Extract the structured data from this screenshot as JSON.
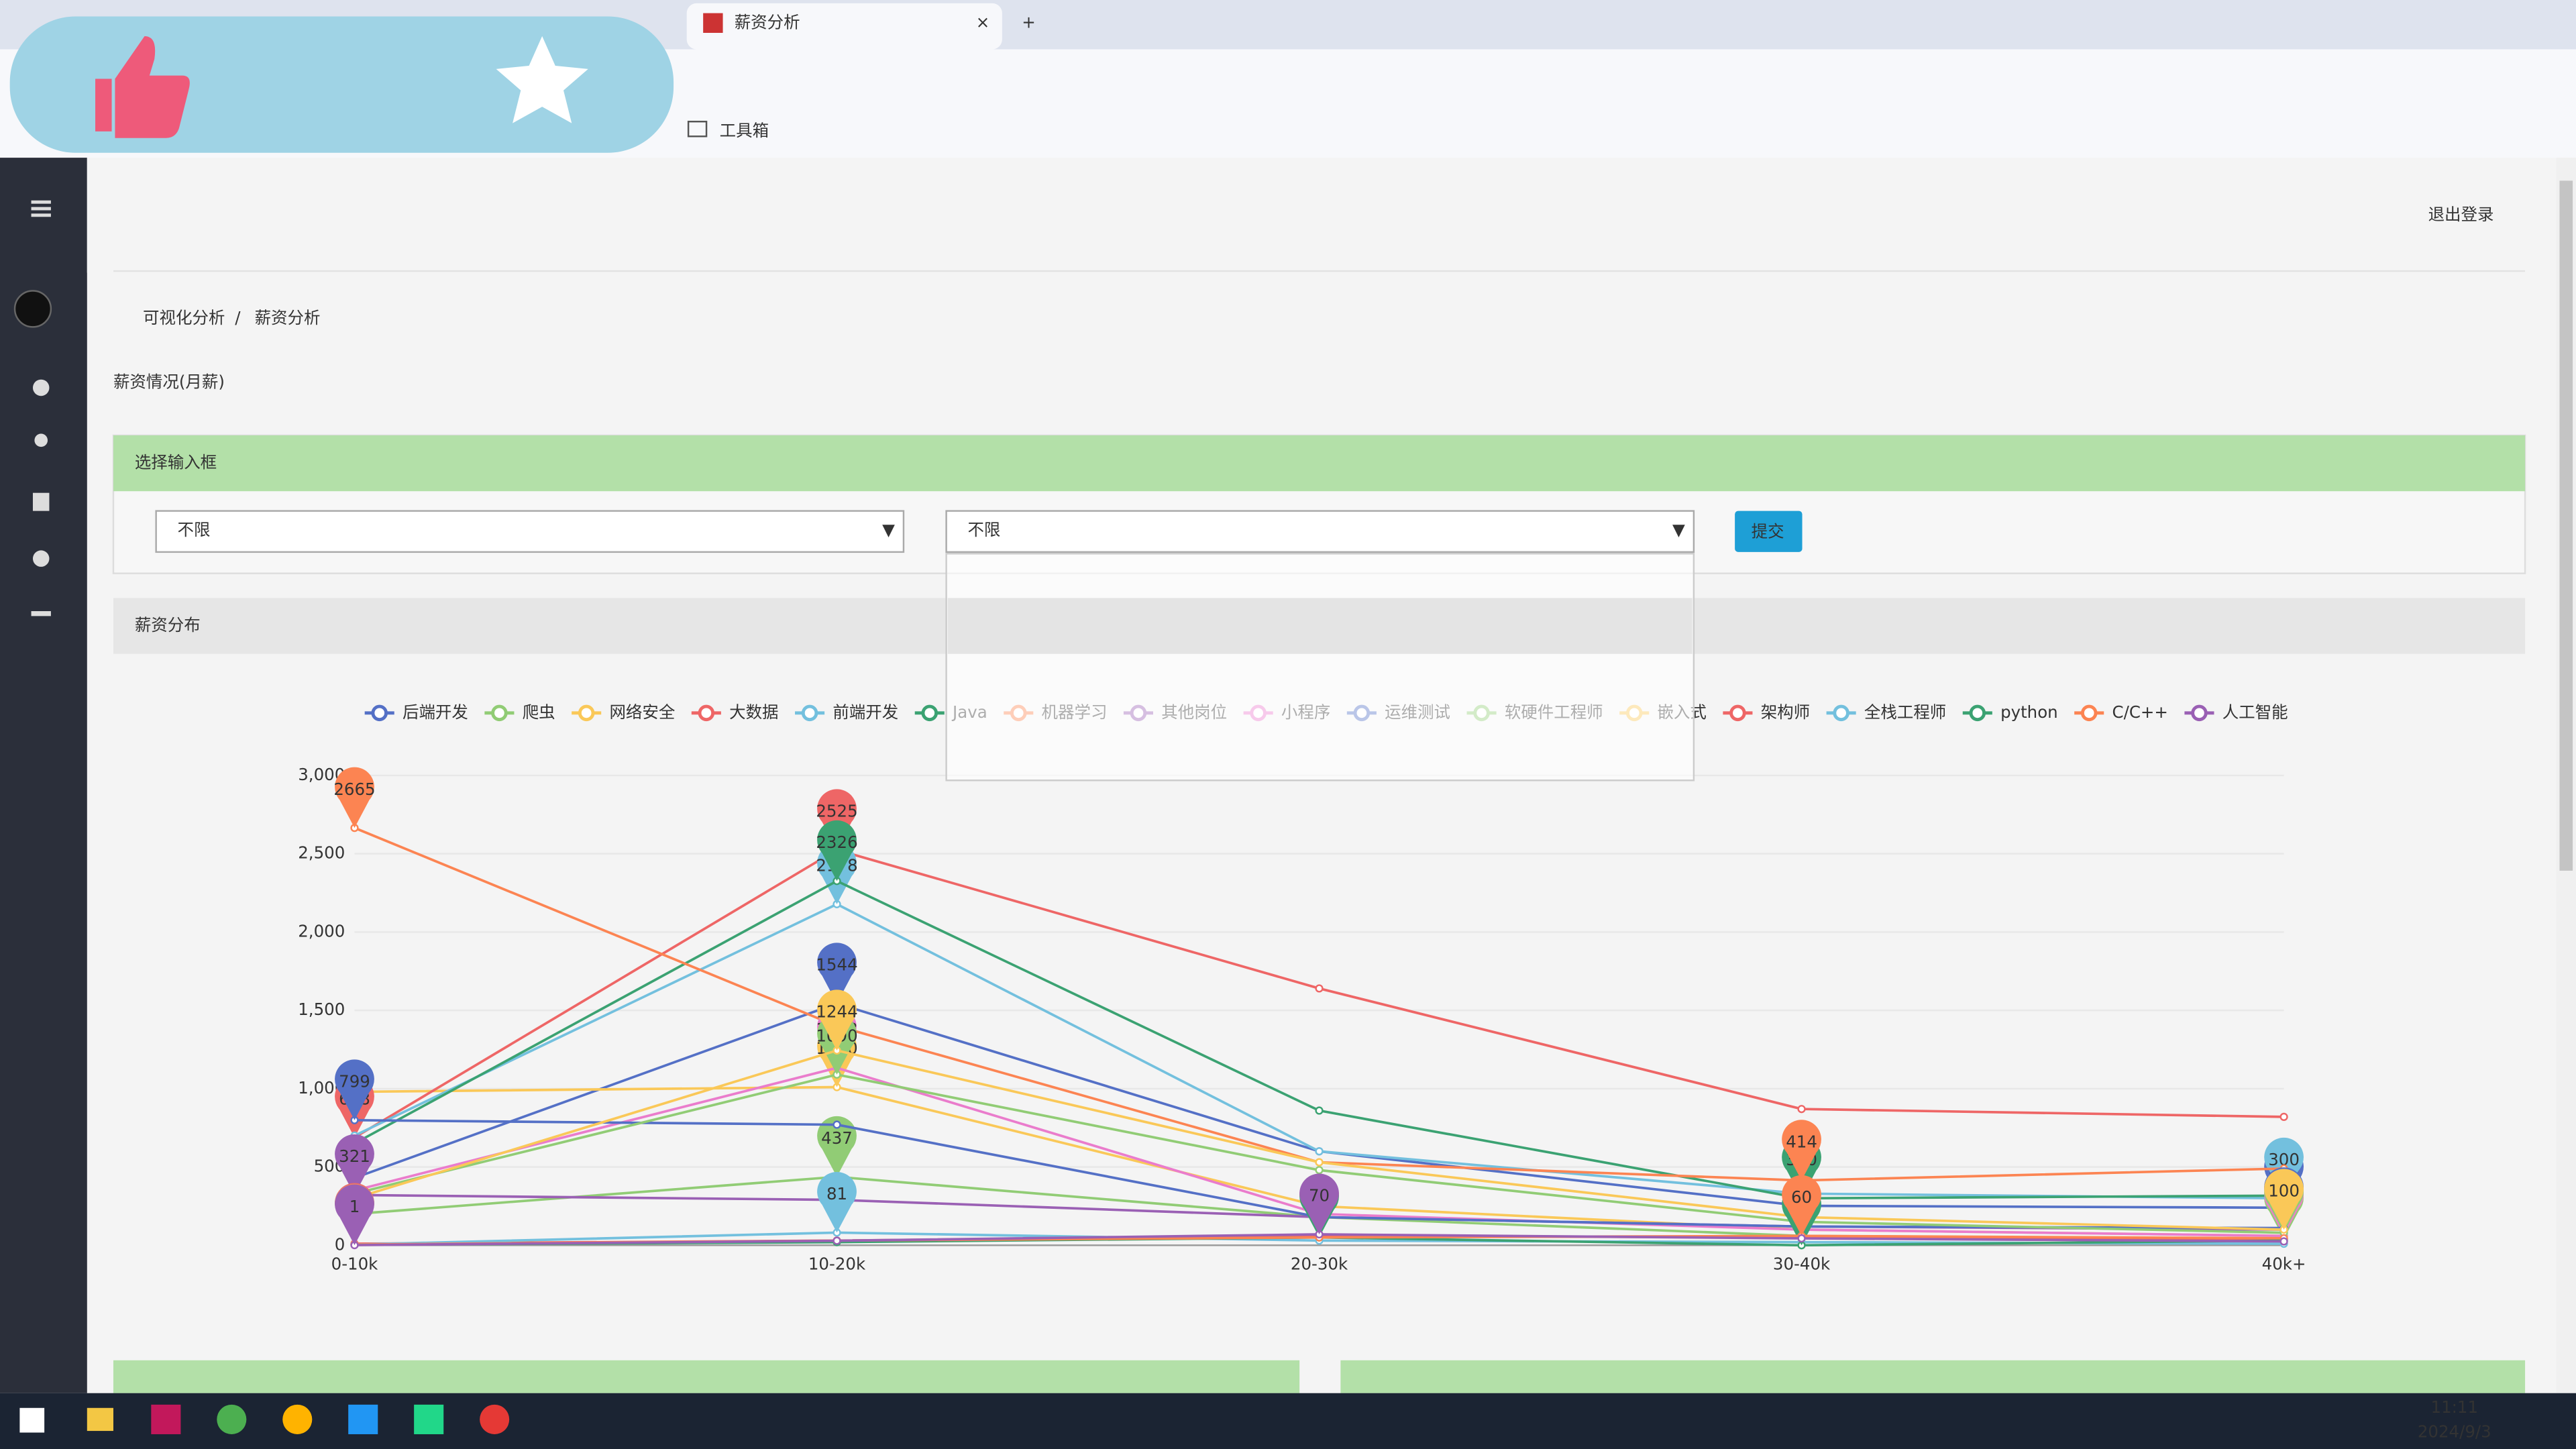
{
  "browser": {
    "tab_title": "薪资分析",
    "bookmark": "工具箱"
  },
  "header": {
    "logout": "退出登录"
  },
  "breadcrumb": [
    "可视化分析",
    "薪资分析"
  ],
  "page_title": "薪资情况(月薪)",
  "filter": {
    "title": "选择输入框",
    "select1": "不限",
    "select2": "不限",
    "submit": "提交"
  },
  "chart_panel": {
    "title": "薪资分布"
  },
  "chart_data": {
    "type": "line",
    "categories": [
      "0-10k",
      "10-20k",
      "20-30k",
      "30-40k",
      "40k+"
    ],
    "ylim": [
      0,
      3000
    ],
    "yticks": [
      0,
      500,
      {
        "value": 1000,
        "label": "1,000"
      },
      {
        "value": 1500,
        "label": "1,500"
      },
      {
        "value": 2000,
        "label": "2,000"
      },
      {
        "value": 2500,
        "label": "2,500"
      },
      {
        "value": 3000,
        "label": "3,000"
      }
    ],
    "grid": true,
    "legend": "top",
    "series": [
      {
        "name": "后端开发",
        "color": "#5470c6",
        "values": [
          430,
          1544,
          600,
          252,
          240
        ]
      },
      {
        "name": "爬虫",
        "color": "#91cc75",
        "values": [
          200,
          437,
          180,
          60,
          40
        ]
      },
      {
        "name": "网络安全",
        "color": "#fac858",
        "values": [
          980,
          1010,
          250,
          100,
          60
        ]
      },
      {
        "name": "大数据",
        "color": "#ee6666",
        "values": [
          688,
          2525,
          1640,
          870,
          820
        ]
      },
      {
        "name": "前端开发",
        "color": "#73c0de",
        "values": [
          700,
          2178,
          600,
          330,
          300
        ]
      },
      {
        "name": "Java",
        "color": "#3ba272",
        "values": [
          650,
          2326,
          860,
          300,
          317
        ]
      },
      {
        "name": "机器学习",
        "color": "#fc8452",
        "values": [
          2665,
          1400,
          530,
          414,
          490
        ]
      },
      {
        "name": "其他岗位",
        "color": "#9a60b4",
        "values": [
          321,
          290,
          180,
          120,
          100
        ]
      },
      {
        "name": "小程序",
        "color": "#ea7ccc",
        "values": [
          350,
          1133,
          200,
          100,
          60
        ]
      },
      {
        "name": "运维测试",
        "color": "#5470c6",
        "values": [
          799,
          770,
          180,
          120,
          110
        ]
      },
      {
        "name": "软硬件工程师",
        "color": "#91cc75",
        "values": [
          330,
          1090,
          480,
          150,
          80
        ]
      },
      {
        "name": "嵌入式",
        "color": "#fac858",
        "values": [
          300,
          1244,
          530,
          180,
          100
        ]
      },
      {
        "name": "架构师",
        "color": "#ee6666",
        "values": [
          10,
          30,
          60,
          50,
          40
        ]
      },
      {
        "name": "全栈工程师",
        "color": "#73c0de",
        "values": [
          5,
          81,
          30,
          20,
          10
        ]
      },
      {
        "name": "python",
        "color": "#3ba272",
        "values": [
          3,
          20,
          50,
          0,
          30
        ]
      },
      {
        "name": "C/C++",
        "color": "#fc8452",
        "values": [
          5,
          30,
          50,
          60,
          45
        ]
      },
      {
        "name": "人工智能",
        "color": "#9a60b4",
        "values": [
          1,
          29,
          70,
          44,
          25
        ]
      }
    ]
  },
  "taskbar": {
    "time": "11:11",
    "date": "2024/9/3"
  }
}
